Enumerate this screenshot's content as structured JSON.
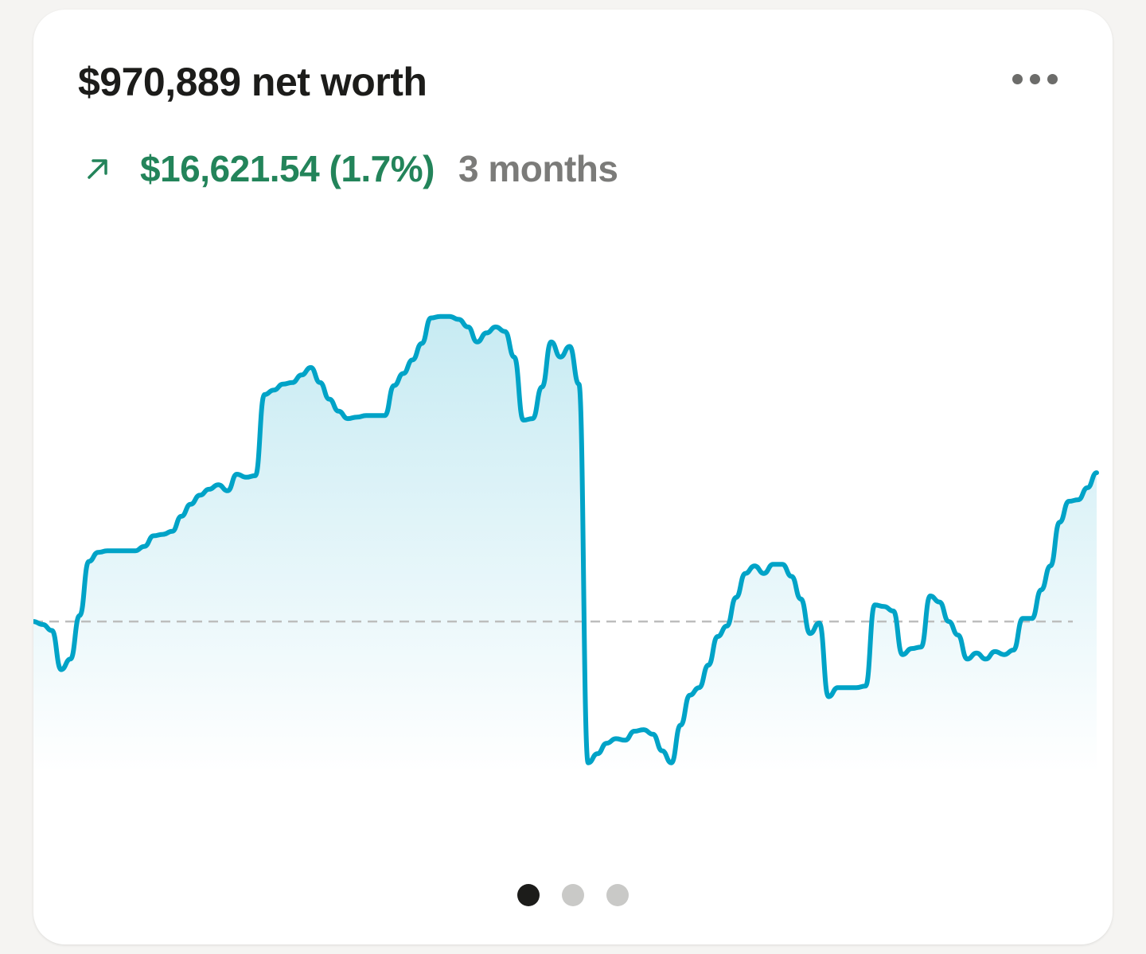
{
  "card": {
    "title": "$970,889 net worth",
    "menu_icon": "more-horizontal-icon",
    "trend_icon": "arrow-up-right-icon",
    "change": "$16,621.54 (1.7%)",
    "period": "3 months"
  },
  "colors": {
    "line": "#00a3c7",
    "positive": "#23845a",
    "muted": "#7b7b79",
    "baseline": "#bdbdbd"
  },
  "pager": {
    "count": 3,
    "active_index": 0
  },
  "chart_data": {
    "type": "area",
    "baseline": 0,
    "ylim": [
      -100,
      215
    ],
    "values": [
      0,
      -2,
      -6,
      -32,
      -25,
      4,
      40,
      46,
      47,
      47,
      47,
      47,
      50,
      57,
      58,
      60,
      70,
      78,
      84,
      88,
      91,
      87,
      98,
      96,
      97,
      151,
      154,
      158,
      159,
      164,
      169,
      159,
      148,
      140,
      135,
      136,
      137,
      137,
      137,
      157,
      165,
      174,
      185,
      202,
      203,
      203,
      201,
      196,
      186,
      192,
      196,
      193,
      176,
      134,
      135,
      156,
      186,
      176,
      183,
      158,
      -94,
      -88,
      -81,
      -78,
      -79,
      -73,
      -72,
      -75,
      -86,
      -94,
      -69,
      -49,
      -44,
      -29,
      -10,
      -3,
      16,
      32,
      37,
      32,
      38,
      38,
      30,
      15,
      -8,
      -1,
      -50,
      -44,
      -44,
      -44,
      -43,
      11,
      10,
      7,
      -22,
      -18,
      -17,
      17,
      13,
      0,
      -9,
      -25,
      -21,
      -25,
      -20,
      -22,
      -19,
      2,
      2,
      21,
      37,
      66,
      80,
      81,
      89,
      99
    ]
  }
}
